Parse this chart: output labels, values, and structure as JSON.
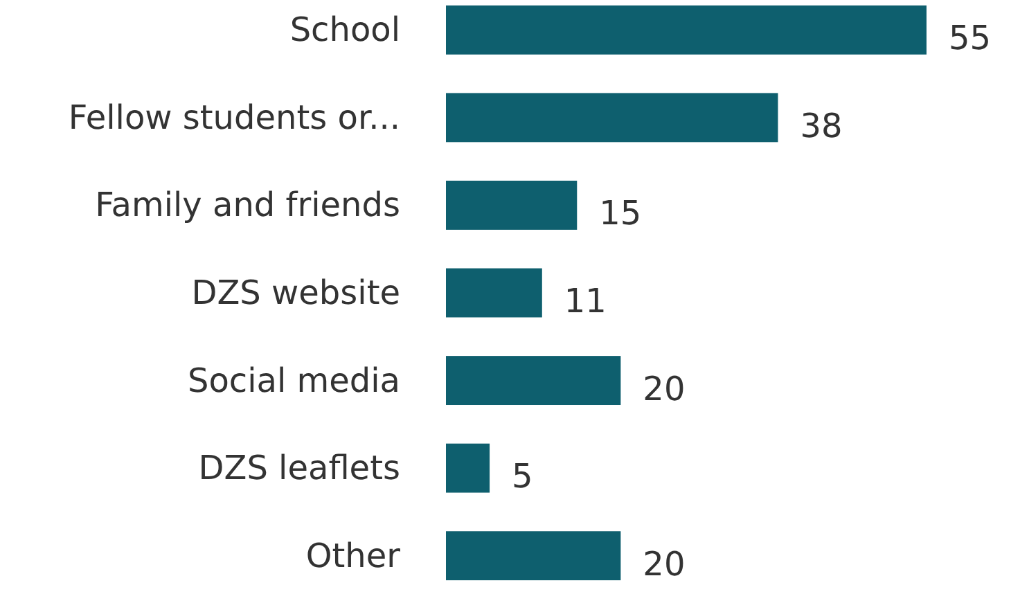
{
  "chart_data": {
    "type": "bar",
    "orientation": "horizontal",
    "categories": [
      "School",
      "Fellow students or...",
      "Family and friends",
      "DZS website",
      "Social media",
      "DZS leaflets",
      "Other"
    ],
    "values": [
      55,
      38,
      15,
      11,
      20,
      5,
      20
    ],
    "color": "#0e5f6e",
    "data_labels": true
  }
}
